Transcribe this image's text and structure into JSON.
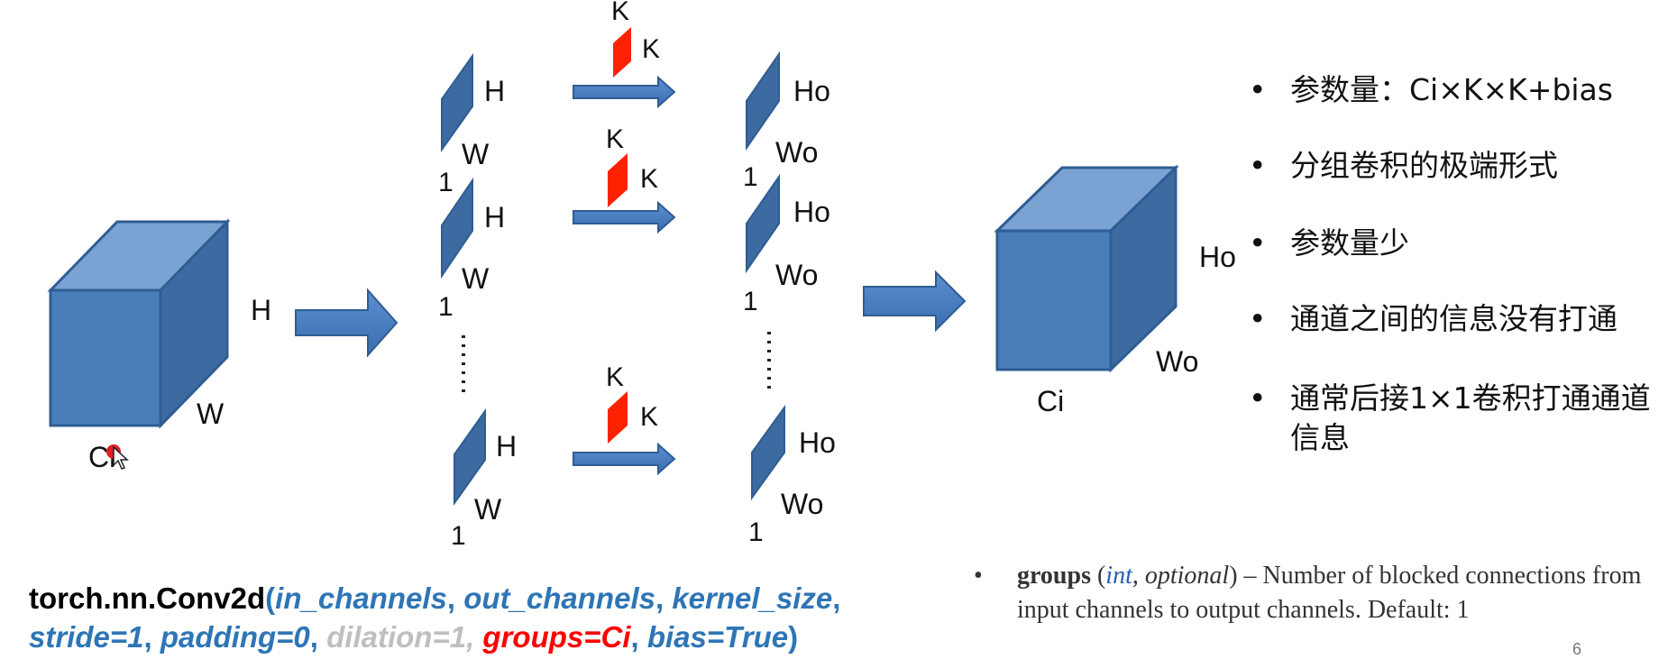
{
  "input_cube": {
    "label_h": "H",
    "label_w": "W",
    "label_c": "Ci"
  },
  "slices": [
    {
      "in_h": "H",
      "in_w": "W",
      "in_one": "1",
      "kernel_k_top": "K",
      "kernel_k_side": "K",
      "out_h": "Ho",
      "out_w": "Wo",
      "out_one": "1"
    },
    {
      "in_h": "H",
      "in_w": "W",
      "in_one": "1",
      "kernel_k_top": "K",
      "kernel_k_side": "K",
      "out_h": "Ho",
      "out_w": "Wo",
      "out_one": "1"
    },
    {
      "in_h": "H",
      "in_w": "W",
      "in_one": "1",
      "kernel_k_top": "K",
      "kernel_k_side": "K",
      "out_h": "Ho",
      "out_w": "Wo",
      "out_one": "1"
    }
  ],
  "output_cube": {
    "label_h": "Ho",
    "label_w": "Wo",
    "label_c": "Ci"
  },
  "bullets": [
    "参数量：Ci×K×K+bias",
    "分组卷积的极端形式",
    "参数量少",
    "通道之间的信息没有打通",
    "通常后接1×1卷积打通通道信息"
  ],
  "code": {
    "fn": "torch.nn.Conv2d",
    "open": "(",
    "in_channels": "in_channels",
    "out_channels": "out_channels",
    "kernel_size": "kernel_size",
    "stride": "stride=1",
    "padding": "padding=0",
    "dilation": "dilation=1",
    "groups": "groups=Ci",
    "bias": "bias=True",
    "comma": ", ",
    "close": ")"
  },
  "doc": {
    "bullet": "•",
    "param": "groups",
    "type": "int",
    "optional": "optional",
    "description": "Number of blocked connections from input channels to output channels. Default: 1"
  },
  "page_number": "6",
  "colors": {
    "cube_front": "#4a7ebb",
    "cube_top": "#7aa3d4",
    "cube_side": "#3d6aa0",
    "slice": "#3d6aa0",
    "kernel": "#ff2200",
    "arrow": "#4a7ebb"
  }
}
